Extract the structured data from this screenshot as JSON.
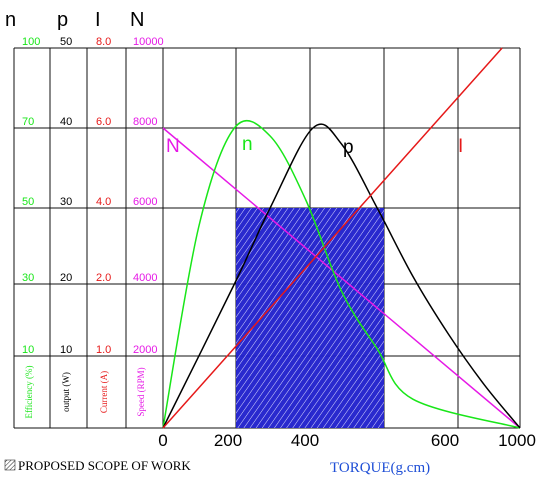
{
  "chart_data": {
    "type": "line",
    "x_axis": {
      "title": "TORQUE(g.cm)",
      "ticks": [
        0,
        200,
        400,
        600,
        1000
      ],
      "range": [
        0,
        1000
      ]
    },
    "scales": [
      {
        "key": "n",
        "header": "n",
        "unit_label": "Efficiency (%)",
        "color": "#19e619",
        "ticks": [
          {
            "label": "10",
            "row": 1
          },
          {
            "label": "30",
            "row": 2
          },
          {
            "label": "50",
            "row": 3
          },
          {
            "label": "70",
            "row": 4
          },
          {
            "label": "100",
            "row": 5
          }
        ]
      },
      {
        "key": "p",
        "header": "p",
        "unit_label": "output (W)",
        "color": "#000000",
        "ticks": [
          {
            "label": "10",
            "row": 1
          },
          {
            "label": "20",
            "row": 2
          },
          {
            "label": "30",
            "row": 3
          },
          {
            "label": "40",
            "row": 4
          },
          {
            "label": "50",
            "row": 5
          }
        ]
      },
      {
        "key": "I",
        "header": "I",
        "unit_label": "Current (A)",
        "color": "#e61919",
        "ticks": [
          {
            "label": "1.0",
            "row": 1
          },
          {
            "label": "2.0",
            "row": 2
          },
          {
            "label": "4.0",
            "row": 3
          },
          {
            "label": "6.0",
            "row": 4
          },
          {
            "label": "8.0",
            "row": 5
          }
        ]
      },
      {
        "key": "N",
        "header": "N",
        "unit_label": "Speed (RPM)",
        "color": "#e619e6",
        "ticks": [
          {
            "label": "2000",
            "row": 1
          },
          {
            "label": "4000",
            "row": 2
          },
          {
            "label": "6000",
            "row": 3
          },
          {
            "label": "8000",
            "row": 4
          },
          {
            "label": "10000",
            "row": 5
          }
        ]
      }
    ],
    "series": [
      {
        "name": "N",
        "color": "#e619e6",
        "points": [
          [
            0,
            8000
          ],
          [
            1000,
            0
          ]
        ]
      },
      {
        "name": "n",
        "color": "#19e619",
        "points": [
          [
            0,
            0
          ],
          [
            100,
            45
          ],
          [
            200,
            70
          ],
          [
            300,
            68
          ],
          [
            400,
            52
          ],
          [
            500,
            28
          ],
          [
            600,
            12
          ],
          [
            700,
            4
          ],
          [
            1000,
            0
          ]
        ]
      },
      {
        "name": "p",
        "color": "#000000",
        "points": [
          [
            0,
            0
          ],
          [
            200,
            20
          ],
          [
            300,
            30
          ],
          [
            420,
            40
          ],
          [
            500,
            38
          ],
          [
            600,
            30
          ],
          [
            700,
            21
          ],
          [
            800,
            13
          ],
          [
            900,
            6
          ],
          [
            1000,
            0
          ]
        ]
      },
      {
        "name": "I",
        "color": "#e61919",
        "points": [
          [
            0,
            0
          ],
          [
            950,
            8.0
          ]
        ]
      }
    ],
    "scope_region": {
      "x_from": 120,
      "x_to": 620,
      "speed_top": 6000
    },
    "legend": {
      "text": "PROPOSED SCOPE OF WORK",
      "swatch_color": "#2a2ac8"
    },
    "grid": true
  }
}
